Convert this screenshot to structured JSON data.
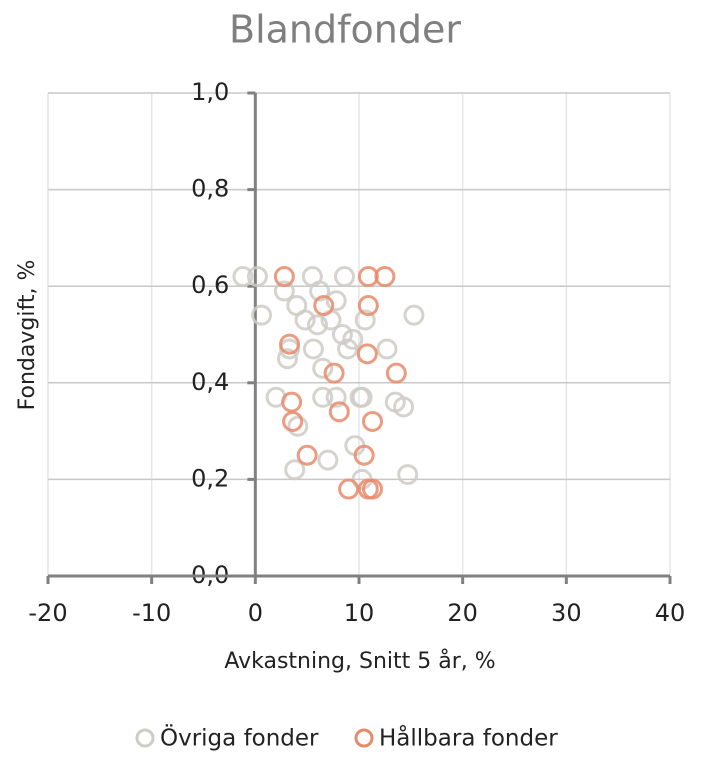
{
  "chart_data": {
    "type": "scatter",
    "title": "Blandfonder",
    "xlabel": "Avkastning, Snitt 5 år, %",
    "ylabel": "Fondavgift, %",
    "xlim": [
      -20,
      40
    ],
    "xticks": [
      -20,
      -10,
      0,
      10,
      20,
      30,
      40
    ],
    "ylim": [
      0,
      1
    ],
    "yticks": [
      {
        "value": 0,
        "label": "0,0"
      },
      {
        "value": 0.2,
        "label": "0,2"
      },
      {
        "value": 0.4,
        "label": "0,4"
      },
      {
        "value": 0.6,
        "label": "0,6"
      },
      {
        "value": 0.8,
        "label": "0,8"
      },
      {
        "value": 1,
        "label": "1,0"
      }
    ],
    "grid": true,
    "legend": "bottom",
    "series": [
      {
        "name": "Övriga fonder",
        "color": "#cfcbc5",
        "x": [
          -1.2,
          0.2,
          5.5,
          8.6,
          2.8,
          6.2,
          4.0,
          7.8,
          0.6,
          4.8,
          6.0,
          7.3,
          10.6,
          15.3,
          8.4,
          9.4,
          5.6,
          3.3,
          8.9,
          12.7,
          3.1,
          6.5,
          2.0,
          6.5,
          7.8,
          10.3,
          13.5,
          14.3,
          4.1,
          9.6,
          7.0,
          3.8,
          10.3,
          14.7,
          10.1
        ],
        "values": [
          0.62,
          0.62,
          0.62,
          0.62,
          0.59,
          0.59,
          0.56,
          0.57,
          0.54,
          0.53,
          0.52,
          0.53,
          0.53,
          0.54,
          0.5,
          0.49,
          0.47,
          0.47,
          0.47,
          0.47,
          0.45,
          0.43,
          0.37,
          0.37,
          0.37,
          0.37,
          0.36,
          0.35,
          0.31,
          0.27,
          0.24,
          0.22,
          0.2,
          0.21,
          0.37
        ]
      },
      {
        "name": "Hållbara fonder",
        "color": "#e8896a",
        "x": [
          2.8,
          10.9,
          12.5,
          6.6,
          10.9,
          3.3,
          10.8,
          7.6,
          13.6,
          3.5,
          8.1,
          3.6,
          11.3,
          5.0,
          10.5,
          9.0,
          10.9,
          11.3
        ],
        "values": [
          0.62,
          0.62,
          0.62,
          0.56,
          0.56,
          0.48,
          0.46,
          0.42,
          0.42,
          0.36,
          0.34,
          0.32,
          0.32,
          0.25,
          0.25,
          0.18,
          0.18,
          0.18
        ]
      }
    ]
  }
}
